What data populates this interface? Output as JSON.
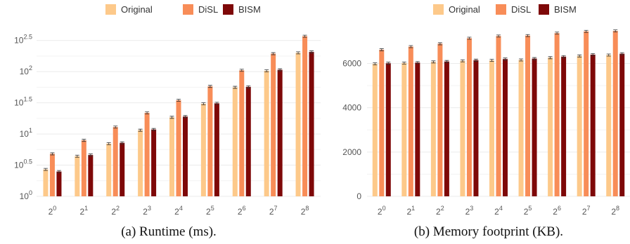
{
  "chart_data": [
    {
      "type": "bar",
      "title": "",
      "xlabel": "",
      "ylabel": "",
      "yscale": "log10",
      "ylim": [
        1,
        500
      ],
      "grid": true,
      "legend_position": "top",
      "caption": "(a) Runtime (ms).",
      "categories": [
        {
          "base": "2",
          "exp": "0"
        },
        {
          "base": "2",
          "exp": "1"
        },
        {
          "base": "2",
          "exp": "2"
        },
        {
          "base": "2",
          "exp": "3"
        },
        {
          "base": "2",
          "exp": "4"
        },
        {
          "base": "2",
          "exp": "5"
        },
        {
          "base": "2",
          "exp": "6"
        },
        {
          "base": "2",
          "exp": "7"
        },
        {
          "base": "2",
          "exp": "8"
        }
      ],
      "yticks": [
        {
          "value": 1,
          "base": "10",
          "exp": "0"
        },
        {
          "value": 3.1623,
          "base": "10",
          "exp": "0.5"
        },
        {
          "value": 10,
          "base": "10",
          "exp": "1"
        },
        {
          "value": 31.623,
          "base": "10",
          "exp": "1.5"
        },
        {
          "value": 100,
          "base": "10",
          "exp": "2"
        },
        {
          "value": 316.23,
          "base": "10",
          "exp": "2.5"
        }
      ],
      "series": [
        {
          "name": "Original",
          "color": "#fdc98a",
          "values": [
            2.7,
            4.4,
            7.0,
            11.5,
            18.5,
            30.5,
            56.0,
            103.0,
            200.0
          ]
        },
        {
          "name": "DiSL",
          "color": "#f88d58",
          "values": [
            4.8,
            7.9,
            12.9,
            21.8,
            34.7,
            58.0,
            105.0,
            194.0,
            370.0
          ]
        },
        {
          "name": "BISM",
          "color": "#7e0808",
          "values": [
            2.5,
            4.6,
            7.2,
            11.8,
            19.0,
            31.0,
            57.0,
            107.0,
            207.0
          ]
        }
      ]
    },
    {
      "type": "bar",
      "title": "",
      "xlabel": "",
      "ylabel": "",
      "ylim": [
        0,
        7600
      ],
      "grid": true,
      "legend_position": "top",
      "caption": "(b) Memory footprint (KB).",
      "categories": [
        {
          "base": "2",
          "exp": "0"
        },
        {
          "base": "2",
          "exp": "1"
        },
        {
          "base": "2",
          "exp": "2"
        },
        {
          "base": "2",
          "exp": "3"
        },
        {
          "base": "2",
          "exp": "4"
        },
        {
          "base": "2",
          "exp": "5"
        },
        {
          "base": "2",
          "exp": "6"
        },
        {
          "base": "2",
          "exp": "7"
        },
        {
          "base": "2",
          "exp": "8"
        }
      ],
      "yticks": [
        {
          "value": 0,
          "label": "0"
        },
        {
          "value": 2000,
          "label": "2000"
        },
        {
          "value": 4000,
          "label": "4000"
        },
        {
          "value": 6000,
          "label": "6000"
        }
      ],
      "series": [
        {
          "name": "Original",
          "color": "#fdc98a",
          "values": [
            5980,
            6020,
            6070,
            6120,
            6140,
            6160,
            6260,
            6340,
            6380
          ]
        },
        {
          "name": "DiSL",
          "color": "#f88d58",
          "values": [
            6620,
            6760,
            6890,
            7140,
            7240,
            7260,
            7370,
            7450,
            7470
          ]
        },
        {
          "name": "BISM",
          "color": "#7e0808",
          "values": [
            6010,
            6040,
            6090,
            6150,
            6200,
            6220,
            6310,
            6400,
            6440
          ]
        }
      ]
    }
  ]
}
